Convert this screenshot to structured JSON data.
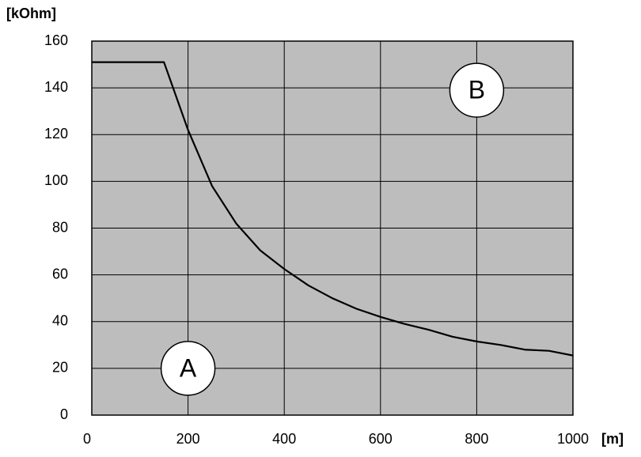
{
  "chart_data": {
    "type": "line",
    "y_label": "[kOhm]",
    "x_label": "[m]",
    "x": [
      0,
      150,
      200,
      250,
      300,
      350,
      400,
      450,
      500,
      550,
      600,
      650,
      700,
      750,
      800,
      850,
      900,
      950,
      1000
    ],
    "values": [
      151,
      151,
      122,
      98,
      82,
      70.5,
      62.5,
      55.5,
      50,
      45.5,
      42,
      39,
      36.5,
      33.5,
      31.5,
      30,
      28,
      27.5,
      25.5
    ],
    "color": "#000000",
    "plot_background": "#bdbdbd",
    "xlim": [
      0,
      1000
    ],
    "xticks": [
      0,
      200,
      400,
      600,
      800,
      1000
    ],
    "ylim": [
      0,
      160
    ],
    "yticks": [
      0,
      20,
      40,
      60,
      80,
      100,
      120,
      140,
      160
    ],
    "grid": true,
    "annotations": [
      {
        "text": "A",
        "x": 200,
        "y": 20
      },
      {
        "text": "B",
        "x": 800,
        "y": 139
      }
    ]
  }
}
